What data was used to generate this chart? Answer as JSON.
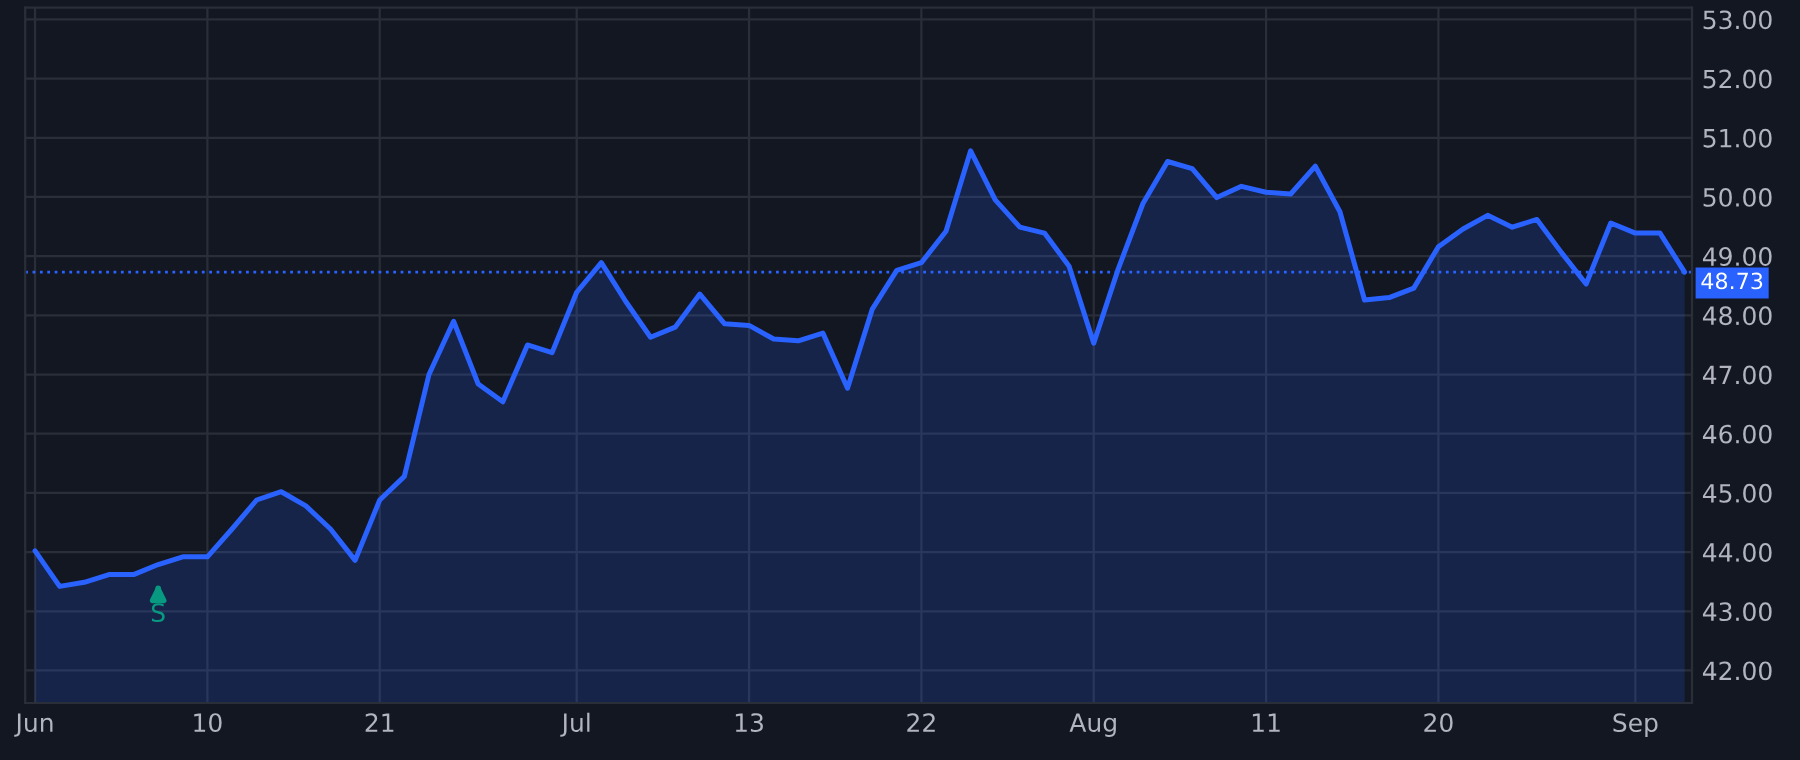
{
  "chart_data": {
    "type": "area",
    "categories": [
      "Jun",
      null,
      null,
      null,
      null,
      null,
      null,
      "10",
      null,
      null,
      null,
      null,
      null,
      null,
      "21",
      null,
      null,
      null,
      null,
      null,
      null,
      null,
      "Jul",
      null,
      null,
      null,
      null,
      null,
      null,
      "13",
      null,
      null,
      null,
      null,
      null,
      null,
      "22",
      null,
      null,
      null,
      null,
      null,
      null,
      "Aug",
      null,
      null,
      null,
      null,
      null,
      null,
      "11",
      null,
      null,
      null,
      null,
      null,
      null,
      "20",
      null,
      null,
      null,
      null,
      null,
      null,
      null,
      "Sep",
      null,
      null
    ],
    "series": [
      {
        "color": "#2962ff",
        "values": [
          44.02,
          43.42,
          43.49,
          43.62,
          43.62,
          43.79,
          43.92,
          43.92,
          44.39,
          44.88,
          45.02,
          44.78,
          44.39,
          43.86,
          44.88,
          45.28,
          47.0,
          47.9,
          46.84,
          46.54,
          47.5,
          47.37,
          48.39,
          48.89,
          48.23,
          47.63,
          47.8,
          48.36,
          47.86,
          47.83,
          47.6,
          47.57,
          47.7,
          46.77,
          48.1,
          48.76,
          48.89,
          49.42,
          50.78,
          49.95,
          49.49,
          49.39,
          48.83,
          47.53,
          48.79,
          49.89,
          50.6,
          50.48,
          49.99,
          50.18,
          50.08,
          50.05,
          50.52,
          49.75,
          48.26,
          48.3,
          48.46,
          49.16,
          49.46,
          49.69,
          49.49,
          49.62,
          49.06,
          48.53,
          49.56,
          49.39,
          49.39,
          48.73
        ]
      }
    ],
    "ylim": [
      41.45,
      53.2
    ],
    "yticks": [
      {
        "value": 42,
        "label": "42.00"
      },
      {
        "value": 43,
        "label": "43.00"
      },
      {
        "value": 44,
        "label": "44.00"
      },
      {
        "value": 45,
        "label": "45.00"
      },
      {
        "value": 46,
        "label": "46.00"
      },
      {
        "value": 47,
        "label": "47.00"
      },
      {
        "value": 48,
        "label": "48.00"
      },
      {
        "value": 49,
        "label": "49.00"
      },
      {
        "value": 50,
        "label": "50.00"
      },
      {
        "value": 51,
        "label": "51.00"
      },
      {
        "value": 52,
        "label": "52.00"
      },
      {
        "value": 53,
        "label": "53.00"
      }
    ],
    "ref_lines": [
      {
        "axis": "y",
        "value": 48.73,
        "label": "48.73",
        "color": "#2962ff",
        "line_style": "dotted"
      }
    ],
    "annotations": [
      {
        "text": "S",
        "y": 43.79
      }
    ],
    "grid": true,
    "line_style": "solid"
  }
}
